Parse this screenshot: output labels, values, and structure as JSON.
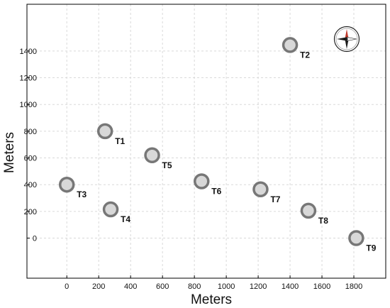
{
  "chart_data": {
    "type": "scatter",
    "xlabel": "Meters",
    "ylabel": "Meters",
    "xlim": [
      -250,
      2000
    ],
    "ylim": [
      -300,
      1750
    ],
    "xticks": [
      0,
      200,
      400,
      600,
      800,
      1000,
      1200,
      1400,
      1600,
      1800
    ],
    "yticks": [
      0,
      200,
      400,
      600,
      800,
      1000,
      1200,
      1400
    ],
    "grid": true,
    "points": [
      {
        "label": "T1",
        "x": 240,
        "y": 800
      },
      {
        "label": "T2",
        "x": 1400,
        "y": 1445
      },
      {
        "label": "T3",
        "x": 0,
        "y": 400
      },
      {
        "label": "T4",
        "x": 275,
        "y": 215
      },
      {
        "label": "T5",
        "x": 535,
        "y": 620
      },
      {
        "label": "T6",
        "x": 845,
        "y": 425
      },
      {
        "label": "T7",
        "x": 1215,
        "y": 365
      },
      {
        "label": "T8",
        "x": 1515,
        "y": 205
      },
      {
        "label": "T9",
        "x": 1815,
        "y": 0
      }
    ],
    "marker_fill": "#d8d8d8",
    "marker_stroke": "#777777",
    "compass_icon": "compass-rose-icon"
  }
}
